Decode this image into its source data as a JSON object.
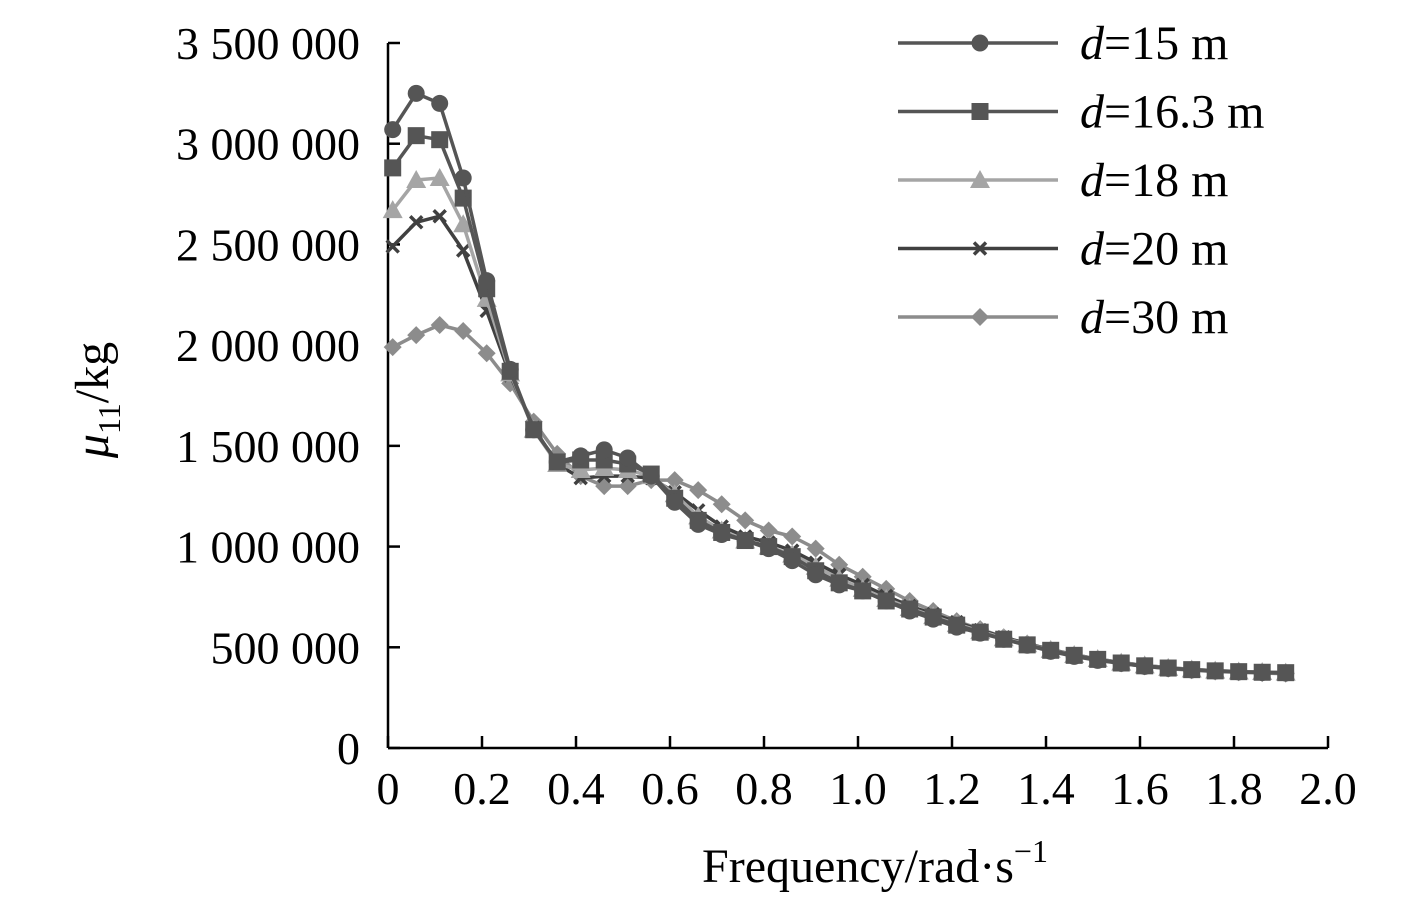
{
  "chart_data": {
    "type": "line",
    "title": "",
    "xlabel": "Frequency/rad·s",
    "xlabel_sup": "−1",
    "ylabel_mu": "μ",
    "ylabel_sub": "11",
    "ylabel_unit": "/kg",
    "xlim": [
      0,
      2.0
    ],
    "ylim": [
      0,
      3500000
    ],
    "xticks": [
      0,
      0.2,
      0.4,
      0.6,
      0.8,
      1.0,
      1.2,
      1.4,
      1.6,
      1.8,
      2.0
    ],
    "xtick_labels": [
      "0",
      "0.2",
      "0.4",
      "0.6",
      "0.8",
      "1.0",
      "1.2",
      "1.4",
      "1.6",
      "1.8",
      "2.0"
    ],
    "yticks": [
      0,
      500000,
      1000000,
      1500000,
      2000000,
      2500000,
      3000000,
      3500000
    ],
    "ytick_labels": [
      "0",
      "500 000",
      "1 000 000",
      "1 500 000",
      "2 000 000",
      "2 500 000",
      "3 000 000",
      "3 500 000"
    ],
    "grid": false,
    "legend_position": "top-right",
    "x": [
      0.01,
      0.06,
      0.11,
      0.16,
      0.21,
      0.26,
      0.31,
      0.36,
      0.41,
      0.46,
      0.51,
      0.56,
      0.61,
      0.66,
      0.71,
      0.76,
      0.81,
      0.86,
      0.91,
      0.96,
      1.01,
      1.06,
      1.11,
      1.16,
      1.21,
      1.26,
      1.31,
      1.36,
      1.41,
      1.46,
      1.51,
      1.56,
      1.61,
      1.66,
      1.71,
      1.76,
      1.81,
      1.86,
      1.91
    ],
    "series": [
      {
        "name": "d=15 m",
        "name_italic": "d",
        "name_rest": "=15 m",
        "color": "#555555",
        "marker": "circle",
        "values": [
          3070000,
          3250000,
          3200000,
          2830000,
          2320000,
          1880000,
          1580000,
          1420000,
          1450000,
          1480000,
          1440000,
          1350000,
          1220000,
          1110000,
          1060000,
          1030000,
          990000,
          930000,
          860000,
          810000,
          780000,
          730000,
          680000,
          640000,
          600000,
          570000,
          540000,
          510000,
          480000,
          455000,
          435000,
          420000,
          405000,
          395000,
          388000,
          382000,
          378000,
          375000,
          372000
        ]
      },
      {
        "name": "d=16.3 m",
        "name_italic": "d",
        "name_rest": "=16.3 m",
        "color": "#555555",
        "marker": "square",
        "values": [
          2880000,
          3040000,
          3020000,
          2730000,
          2280000,
          1870000,
          1580000,
          1420000,
          1430000,
          1430000,
          1410000,
          1360000,
          1240000,
          1130000,
          1070000,
          1030000,
          1000000,
          950000,
          880000,
          820000,
          780000,
          730000,
          690000,
          650000,
          610000,
          575000,
          540000,
          512000,
          485000,
          460000,
          440000,
          422000,
          408000,
          397000,
          389000,
          383000,
          379000,
          376000,
          374000
        ]
      },
      {
        "name": "d=18 m",
        "name_italic": "d",
        "name_rest": "=18 m",
        "color": "#a5a5a5",
        "marker": "triangle",
        "values": [
          2670000,
          2820000,
          2830000,
          2600000,
          2230000,
          1860000,
          1580000,
          1410000,
          1380000,
          1390000,
          1380000,
          1350000,
          1260000,
          1150000,
          1080000,
          1030000,
          1000000,
          960000,
          900000,
          840000,
          790000,
          740000,
          695000,
          655000,
          615000,
          580000,
          545000,
          515000,
          487000,
          462000,
          442000,
          424000,
          410000,
          398000,
          390000,
          384000,
          380000,
          377000,
          374000
        ]
      },
      {
        "name": "d=20 m",
        "name_italic": "d",
        "name_rest": "=20 m",
        "color": "#404040",
        "marker": "x",
        "values": [
          2490000,
          2610000,
          2640000,
          2470000,
          2170000,
          1850000,
          1590000,
          1410000,
          1340000,
          1350000,
          1350000,
          1340000,
          1270000,
          1180000,
          1100000,
          1050000,
          1020000,
          980000,
          920000,
          860000,
          810000,
          755000,
          705000,
          665000,
          625000,
          585000,
          550000,
          518000,
          489000,
          463000,
          442000,
          424000,
          410000,
          398000,
          390000,
          384000,
          380000,
          377000,
          374000
        ]
      },
      {
        "name": "d=30 m",
        "name_italic": "d",
        "name_rest": "=30 m",
        "color": "#8c8c8c",
        "marker": "diamond",
        "values": [
          1990000,
          2050000,
          2100000,
          2070000,
          1960000,
          1810000,
          1620000,
          1460000,
          1350000,
          1300000,
          1300000,
          1330000,
          1330000,
          1280000,
          1210000,
          1130000,
          1080000,
          1050000,
          990000,
          910000,
          850000,
          790000,
          730000,
          680000,
          630000,
          590000,
          550000,
          518000,
          486000,
          460000,
          438000,
          420000,
          405000,
          394000,
          386000,
          380000,
          376000,
          372000,
          369000
        ]
      }
    ]
  }
}
